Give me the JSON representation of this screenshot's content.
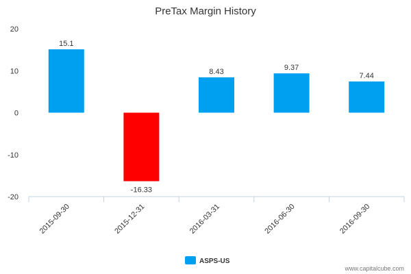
{
  "chart_data": {
    "type": "bar",
    "title": "PreTax Margin History",
    "categories": [
      "2015-09-30",
      "2015-12-31",
      "2016-03-31",
      "2016-06-30",
      "2016-09-30"
    ],
    "series": [
      {
        "name": "ASPS-US",
        "values": [
          15.1,
          -16.33,
          8.43,
          9.37,
          7.44
        ],
        "data_labels": [
          "15.1",
          "-16.33",
          "8.43",
          "9.37",
          "7.44"
        ],
        "color": "#00a0f0",
        "negative_color": "#ff0000"
      }
    ],
    "ylim": [
      -20,
      20
    ],
    "yticks": [
      20,
      10,
      0,
      -10,
      -20
    ],
    "ytick_labels": [
      "20",
      "10",
      "0",
      "-10",
      "-20"
    ],
    "xlabel": "",
    "ylabel": "",
    "grid": false,
    "legend": "bottom-center"
  },
  "credit": "www.capitalcube.com"
}
